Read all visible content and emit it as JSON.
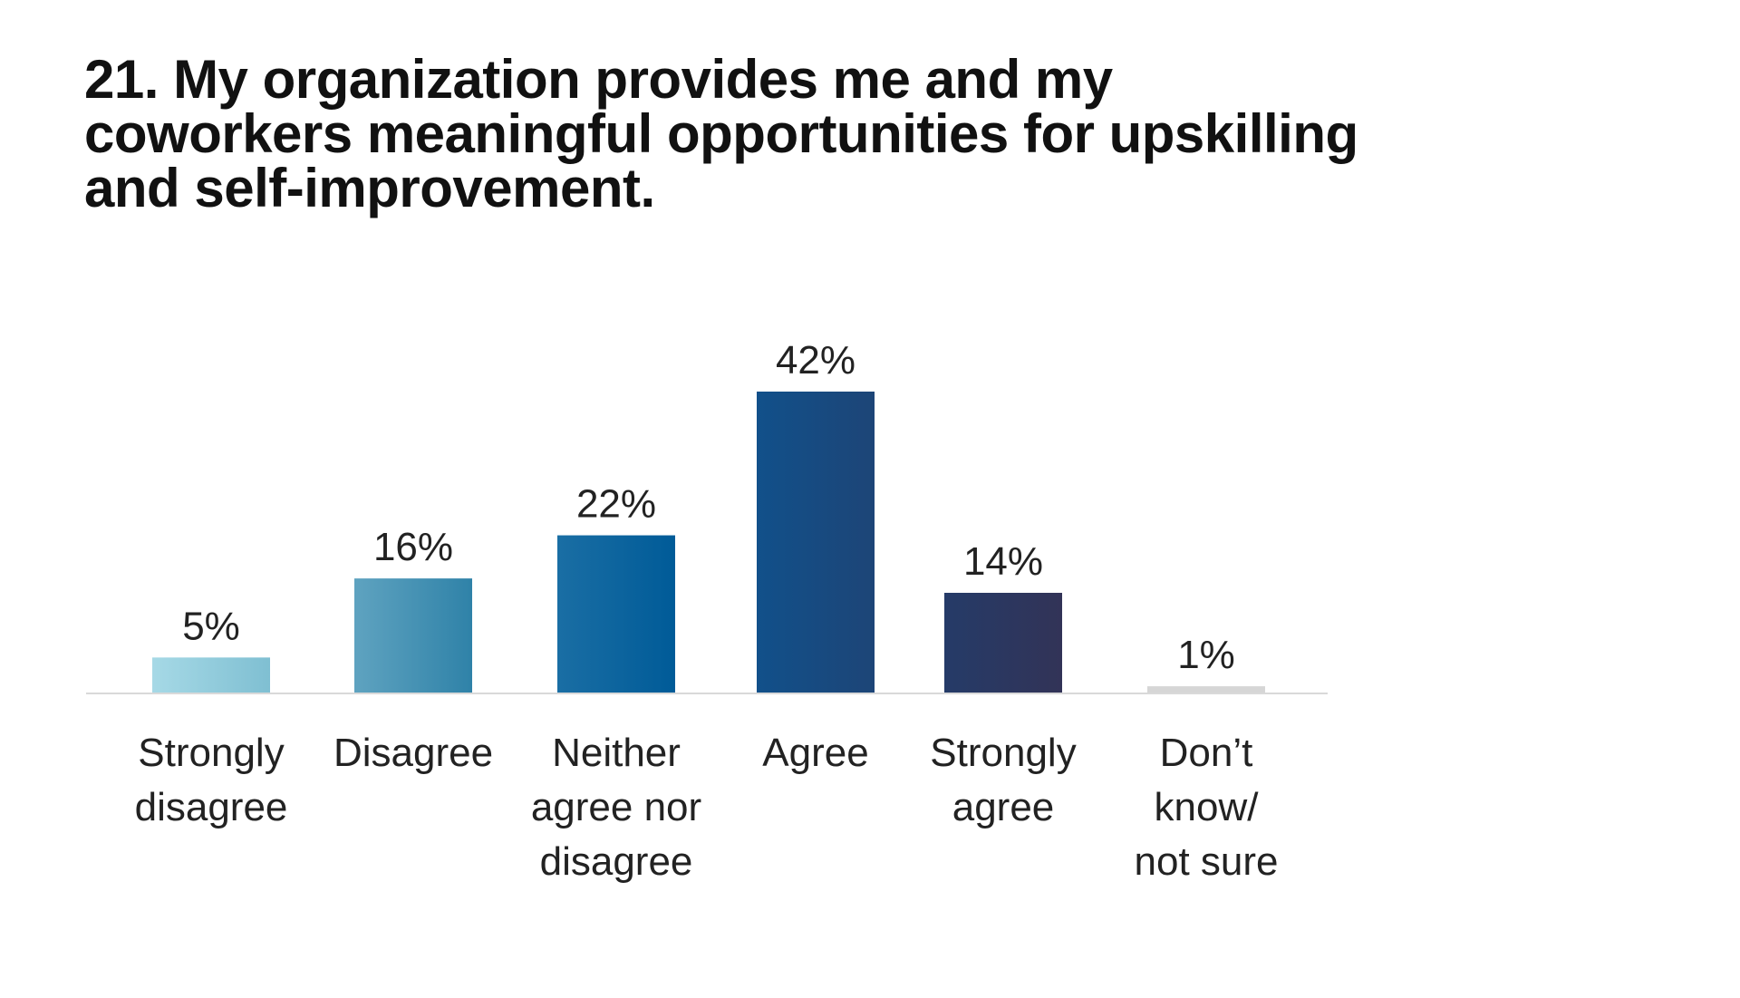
{
  "chart_data": {
    "type": "bar",
    "title_lines": [
      "21. My organization provides me and my",
      "coworkers meaningful opportunities for upskilling",
      "and self-improvement."
    ],
    "categories": [
      [
        "Strongly",
        "disagree"
      ],
      [
        "Disagree"
      ],
      [
        "Neither",
        "agree nor",
        "disagree"
      ],
      [
        "Agree"
      ],
      [
        "Strongly",
        "agree"
      ],
      [
        "Don’t",
        "know/",
        "not sure"
      ]
    ],
    "values": [
      5,
      16,
      22,
      42,
      14,
      1
    ],
    "value_labels": [
      "5%",
      "16%",
      "22%",
      "42%",
      "14%",
      "1%"
    ],
    "ylim": [
      0,
      42
    ],
    "grid": false,
    "bar_colors": [
      [
        "#a6d9e6",
        "#7fbfd2"
      ],
      [
        "#5fa3c0",
        "#2f82a8"
      ],
      [
        "#1a6ea4",
        "#005b98"
      ],
      [
        "#11508a",
        "#1d4577"
      ],
      [
        "#253b68",
        "#323357"
      ],
      [
        "#d6d6d6",
        "#d6d6d6"
      ]
    ]
  }
}
